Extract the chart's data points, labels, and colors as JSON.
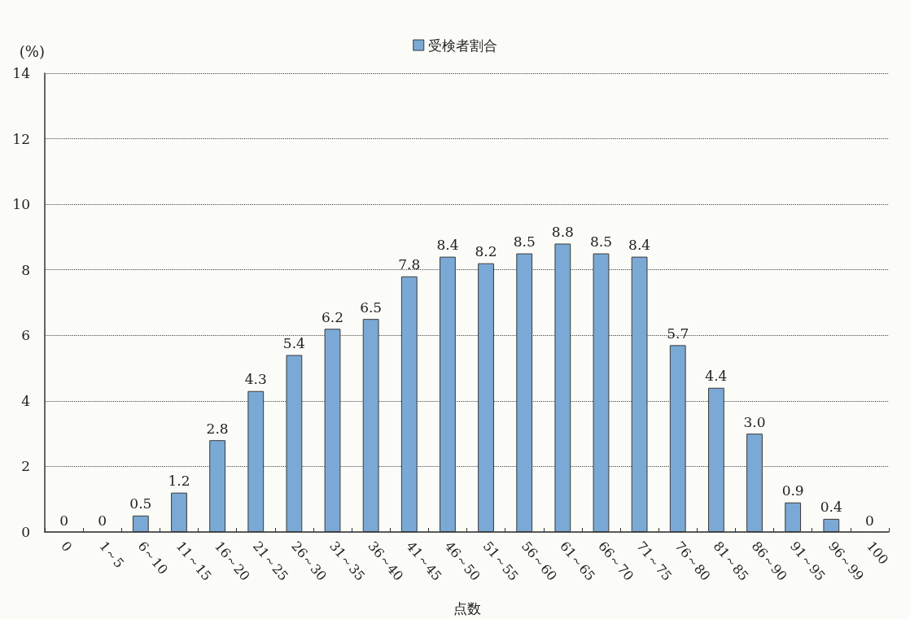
{
  "chart_data": {
    "type": "bar",
    "xlabel": "点数",
    "ylabel": "(%)",
    "categories": [
      "0",
      "1～5",
      "6～10",
      "11～15",
      "16～20",
      "21～25",
      "26～30",
      "31～35",
      "36～40",
      "41～45",
      "46～50",
      "51～55",
      "56～60",
      "61～65",
      "66～70",
      "71～75",
      "76～80",
      "81～85",
      "86～90",
      "91～95",
      "96～99",
      "100"
    ],
    "series": [
      {
        "name": "受検者割合",
        "color": "#7aa9d6",
        "values": [
          0,
          0,
          0.5,
          1.2,
          2.8,
          4.3,
          5.4,
          6.2,
          6.5,
          7.8,
          8.4,
          8.2,
          8.5,
          8.8,
          8.5,
          8.4,
          5.7,
          4.4,
          3.0,
          0.9,
          0.4,
          0
        ],
        "value_labels": [
          "0",
          "0",
          "0.5",
          "1.2",
          "2.8",
          "4.3",
          "5.4",
          "6.2",
          "6.5",
          "7.8",
          "8.4",
          "8.2",
          "8.5",
          "8.8",
          "8.5",
          "8.4",
          "5.7",
          "4.4",
          "3.0",
          "0.9",
          "0.4",
          "0"
        ]
      }
    ],
    "ylim": [
      0,
      14
    ],
    "yticks": [
      0,
      2,
      4,
      6,
      8,
      10,
      12,
      14
    ],
    "grid": "y",
    "legend": "top"
  }
}
